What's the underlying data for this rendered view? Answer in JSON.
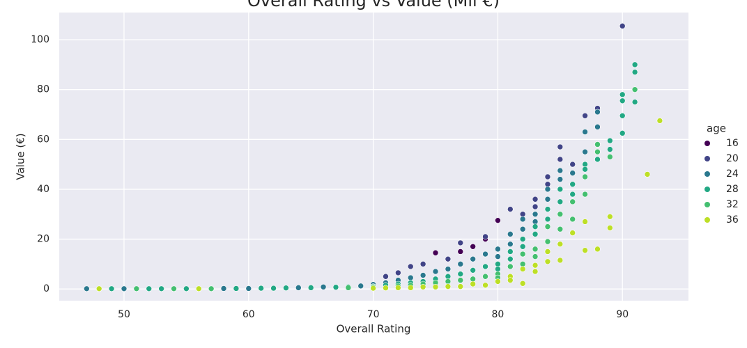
{
  "chart_data": {
    "type": "scatter",
    "title": "Overall Rating vs Value (Mil €)",
    "x_label": "Overall Rating",
    "y_label": "Value (€)",
    "legend_title": "age",
    "legend_position": "right",
    "grid": true,
    "xlim": [
      44.8,
      95.3
    ],
    "ylim": [
      -4.7,
      110.9
    ],
    "xticks": [
      50,
      60,
      70,
      80,
      90
    ],
    "yticks": [
      0,
      20,
      40,
      60,
      80,
      100
    ],
    "series": [
      {
        "name": "16",
        "color": "#440154",
        "x": [
          77,
          75,
          80,
          78,
          79
        ],
        "values": [
          15,
          14.5,
          27.5,
          17,
          20
        ]
      },
      {
        "name": "20",
        "color": "#414487",
        "x": [
          90,
          87,
          85,
          81,
          84,
          83,
          82,
          86,
          88,
          79,
          76,
          77,
          73,
          74,
          85,
          84,
          83,
          71,
          72
        ],
        "values": [
          105.5,
          69.5,
          57,
          32,
          45,
          36,
          30,
          50,
          72.5,
          21,
          12,
          18.5,
          9,
          10,
          52,
          42,
          33,
          5,
          6.5
        ]
      },
      {
        "name": "24",
        "color": "#2a788e",
        "x": [
          88,
          88,
          87,
          87,
          86,
          85,
          85,
          84,
          84,
          83,
          83,
          82,
          82,
          81,
          81,
          80,
          80,
          79,
          78,
          77,
          76,
          75,
          74,
          73,
          72,
          71,
          70,
          69,
          66,
          58,
          47,
          60,
          64,
          50
        ],
        "values": [
          71,
          65,
          63,
          55,
          46.5,
          47.5,
          44,
          40,
          36,
          30,
          27,
          28,
          24,
          22,
          18,
          16,
          13,
          14,
          12,
          10,
          8,
          7,
          5.5,
          4.5,
          3.5,
          2.5,
          1.8,
          1.2,
          0.8,
          0.2,
          0.1,
          0.2,
          0.5,
          0.1
        ]
      },
      {
        "name": "28",
        "color": "#22a884",
        "x": [
          91,
          91,
          90,
          90,
          90,
          90,
          91,
          89,
          89,
          88,
          87,
          87,
          86,
          86,
          85,
          85,
          84,
          84,
          83,
          83,
          82,
          82,
          81,
          81,
          80,
          80,
          79,
          78,
          77,
          76,
          75,
          74,
          73,
          72,
          71,
          70,
          68,
          65,
          62,
          59,
          55,
          53,
          52,
          49,
          61,
          63,
          67
        ],
        "values": [
          90,
          87,
          78,
          75.5,
          69.5,
          62.5,
          75,
          59.5,
          56,
          52,
          50,
          48,
          42,
          38,
          40,
          35,
          32,
          28,
          25,
          22,
          20,
          17,
          15,
          12,
          10,
          8,
          9,
          7.5,
          6,
          5,
          4,
          3,
          2.5,
          2,
          1.5,
          1,
          0.8,
          0.5,
          0.3,
          0.2,
          0.1,
          0.1,
          0.1,
          0.1,
          0.3,
          0.4,
          0.7
        ]
      },
      {
        "name": "32",
        "color": "#44bf70",
        "x": [
          91,
          89,
          88,
          88,
          87,
          87,
          86,
          86,
          85,
          85,
          84,
          84,
          83,
          83,
          82,
          82,
          81,
          80,
          80,
          79,
          78,
          77,
          76,
          75,
          74,
          73,
          72,
          70,
          68,
          57,
          54,
          51,
          48,
          56
        ],
        "values": [
          80,
          53,
          58,
          55,
          45,
          38,
          35,
          28,
          30,
          24,
          25,
          19,
          16,
          13,
          14,
          10,
          9,
          6,
          4.5,
          5,
          4,
          3.5,
          3,
          2.5,
          2,
          1.5,
          1.2,
          0.8,
          0.5,
          0.1,
          0.1,
          0.1,
          0.1,
          0.1
        ]
      },
      {
        "name": "36",
        "color": "#bddf26",
        "x": [
          93,
          92,
          89,
          89,
          88,
          87,
          87,
          86,
          85,
          85,
          84,
          84,
          83,
          83,
          82,
          82,
          81,
          81,
          80,
          79,
          78,
          77,
          76,
          75,
          74,
          73,
          72,
          71,
          70,
          56,
          48
        ],
        "values": [
          67.5,
          46,
          29,
          24.5,
          16,
          15.5,
          27,
          22.5,
          18,
          11.5,
          11,
          15,
          7,
          9.5,
          8,
          2.2,
          5,
          3.5,
          3,
          1.5,
          2,
          1,
          1,
          0.8,
          0.8,
          0.5,
          0.5,
          0.4,
          0.3,
          0.1,
          0.1
        ]
      }
    ]
  }
}
